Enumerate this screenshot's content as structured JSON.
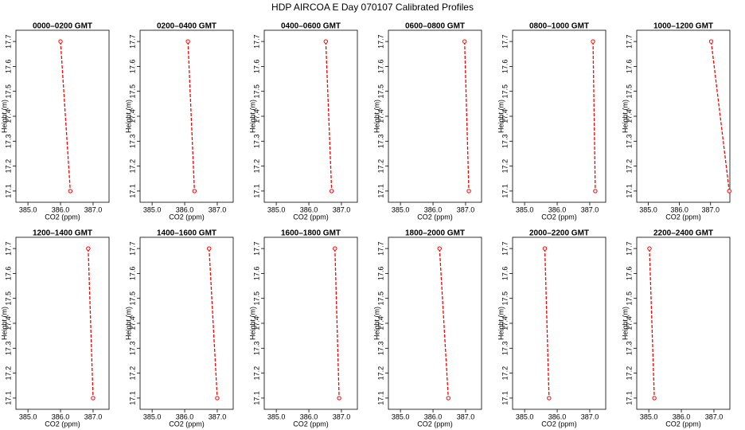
{
  "title": "HDP AIRCOA E  Day 070107  Calibrated Profiles",
  "chart_data": [
    {
      "type": "line",
      "title": "0000–0200 GMT",
      "xlabel": "CO2 (ppm)",
      "ylabel": "Height (m)",
      "color": "#ff0000",
      "x": [
        386.0,
        386.3
      ],
      "values": [
        17.7,
        17.1
      ],
      "xlim": [
        384.63,
        387.49
      ],
      "ylim": [
        17.055,
        17.745
      ],
      "xticks": [
        {
          "value": 385,
          "label": "385.0"
        },
        {
          "value": 386,
          "label": "386.0"
        },
        {
          "value": 387,
          "label": "387.0"
        }
      ],
      "yticks": [
        17.1,
        17.2,
        17.3,
        17.4,
        17.5,
        17.6,
        17.7
      ]
    },
    {
      "type": "line",
      "title": "0200–0400 GMT",
      "xlabel": "CO2 (ppm)",
      "ylabel": "Height (m)",
      "color": "#ff0000",
      "x": [
        386.1,
        386.3
      ],
      "values": [
        17.7,
        17.1
      ],
      "xlim": [
        384.63,
        387.49
      ],
      "ylim": [
        17.055,
        17.745
      ],
      "xticks": [
        {
          "value": 385,
          "label": "385.0"
        },
        {
          "value": 386,
          "label": "386.0"
        },
        {
          "value": 387,
          "label": "387.0"
        }
      ],
      "yticks": [
        17.1,
        17.2,
        17.3,
        17.4,
        17.5,
        17.6,
        17.7
      ]
    },
    {
      "type": "line",
      "title": "0400–0600 GMT",
      "xlabel": "CO2 (ppm)",
      "ylabel": "Height (m)",
      "color": "#ff0000",
      "x": [
        386.52,
        386.7
      ],
      "values": [
        17.7,
        17.1
      ],
      "xlim": [
        384.63,
        387.49
      ],
      "ylim": [
        17.055,
        17.745
      ],
      "xticks": [
        {
          "value": 385,
          "label": "385.0"
        },
        {
          "value": 386,
          "label": "386.0"
        },
        {
          "value": 387,
          "label": "387.0"
        }
      ],
      "yticks": [
        17.1,
        17.2,
        17.3,
        17.4,
        17.5,
        17.6,
        17.7
      ]
    },
    {
      "type": "line",
      "title": "0600–0800 GMT",
      "xlabel": "CO2 (ppm)",
      "ylabel": "Height (m)",
      "color": "#ff0000",
      "x": [
        386.97,
        387.1
      ],
      "values": [
        17.7,
        17.1
      ],
      "xlim": [
        384.63,
        387.49
      ],
      "ylim": [
        17.055,
        17.745
      ],
      "xticks": [
        {
          "value": 385,
          "label": "385.0"
        },
        {
          "value": 386,
          "label": "386.0"
        },
        {
          "value": 387,
          "label": "387.0"
        }
      ],
      "yticks": [
        17.1,
        17.2,
        17.3,
        17.4,
        17.5,
        17.6,
        17.7
      ]
    },
    {
      "type": "line",
      "title": "0800–1000 GMT",
      "xlabel": "CO2 (ppm)",
      "ylabel": "Height (m)",
      "color": "#ff0000",
      "x": [
        387.1,
        387.17
      ],
      "values": [
        17.7,
        17.1
      ],
      "xlim": [
        384.63,
        387.49
      ],
      "ylim": [
        17.055,
        17.745
      ],
      "xticks": [
        {
          "value": 385,
          "label": "385.0"
        },
        {
          "value": 386,
          "label": "386.0"
        },
        {
          "value": 387,
          "label": "387.0"
        }
      ],
      "yticks": [
        17.1,
        17.2,
        17.3,
        17.4,
        17.5,
        17.6,
        17.7
      ]
    },
    {
      "type": "line",
      "title": "1000–1200 GMT",
      "xlabel": "CO2 (ppm)",
      "ylabel": "Height (m)",
      "color": "#ff0000",
      "x": [
        387.02,
        387.6
      ],
      "values": [
        17.7,
        17.1
      ],
      "xlim": [
        384.63,
        387.62
      ],
      "ylim": [
        17.055,
        17.745
      ],
      "xticks": [
        {
          "value": 385,
          "label": "385.0"
        },
        {
          "value": 386,
          "label": "386.0"
        },
        {
          "value": 387,
          "label": "387.0"
        }
      ],
      "yticks": [
        17.1,
        17.2,
        17.3,
        17.4,
        17.5,
        17.6,
        17.7
      ]
    },
    {
      "type": "line",
      "title": "1200–1400 GMT",
      "xlabel": "CO2 (ppm)",
      "ylabel": "Height (m)",
      "color": "#ff0000",
      "x": [
        386.85,
        387.0
      ],
      "values": [
        17.7,
        17.1
      ],
      "xlim": [
        384.63,
        387.49
      ],
      "ylim": [
        17.055,
        17.745
      ],
      "xticks": [
        {
          "value": 385,
          "label": "385.0"
        },
        {
          "value": 386,
          "label": "386.0"
        },
        {
          "value": 387,
          "label": "387.0"
        }
      ],
      "yticks": [
        17.1,
        17.2,
        17.3,
        17.4,
        17.5,
        17.6,
        17.7
      ]
    },
    {
      "type": "line",
      "title": "1400–1600 GMT",
      "xlabel": "CO2 (ppm)",
      "ylabel": "Height (m)",
      "color": "#ff0000",
      "x": [
        386.75,
        387.0
      ],
      "values": [
        17.7,
        17.1
      ],
      "xlim": [
        384.63,
        387.49
      ],
      "ylim": [
        17.055,
        17.745
      ],
      "xticks": [
        {
          "value": 385,
          "label": "385.0"
        },
        {
          "value": 386,
          "label": "386.0"
        },
        {
          "value": 387,
          "label": "387.0"
        }
      ],
      "yticks": [
        17.1,
        17.2,
        17.3,
        17.4,
        17.5,
        17.6,
        17.7
      ]
    },
    {
      "type": "line",
      "title": "1600–1800 GMT",
      "xlabel": "CO2 (ppm)",
      "ylabel": "Height (m)",
      "color": "#ff0000",
      "x": [
        386.8,
        386.93
      ],
      "values": [
        17.7,
        17.1
      ],
      "xlim": [
        384.63,
        387.49
      ],
      "ylim": [
        17.055,
        17.745
      ],
      "xticks": [
        {
          "value": 385,
          "label": "385.0"
        },
        {
          "value": 386,
          "label": "386.0"
        },
        {
          "value": 387,
          "label": "387.0"
        }
      ],
      "yticks": [
        17.1,
        17.2,
        17.3,
        17.4,
        17.5,
        17.6,
        17.7
      ]
    },
    {
      "type": "line",
      "title": "1800–2000 GMT",
      "xlabel": "CO2 (ppm)",
      "ylabel": "Height (m)",
      "color": "#ff0000",
      "x": [
        386.2,
        386.47
      ],
      "values": [
        17.7,
        17.1
      ],
      "xlim": [
        384.63,
        387.49
      ],
      "ylim": [
        17.055,
        17.745
      ],
      "xticks": [
        {
          "value": 385,
          "label": "385.0"
        },
        {
          "value": 386,
          "label": "386.0"
        },
        {
          "value": 387,
          "label": "387.0"
        }
      ],
      "yticks": [
        17.1,
        17.2,
        17.3,
        17.4,
        17.5,
        17.6,
        17.7
      ]
    },
    {
      "type": "line",
      "title": "2000–2200 GMT",
      "xlabel": "CO2 (ppm)",
      "ylabel": "Height (m)",
      "color": "#ff0000",
      "x": [
        385.62,
        385.75
      ],
      "values": [
        17.7,
        17.1
      ],
      "xlim": [
        384.63,
        387.49
      ],
      "ylim": [
        17.055,
        17.745
      ],
      "xticks": [
        {
          "value": 385,
          "label": "385.0"
        },
        {
          "value": 386,
          "label": "386.0"
        },
        {
          "value": 387,
          "label": "387.0"
        }
      ],
      "yticks": [
        17.1,
        17.2,
        17.3,
        17.4,
        17.5,
        17.6,
        17.7
      ]
    },
    {
      "type": "line",
      "title": "2200–2400 GMT",
      "xlabel": "CO2 (ppm)",
      "ylabel": "Height (m)",
      "color": "#ff0000",
      "x": [
        385.02,
        385.17
      ],
      "values": [
        17.7,
        17.1
      ],
      "xlim": [
        384.63,
        387.49
      ],
      "ylim": [
        17.055,
        17.745
      ],
      "xticks": [
        {
          "value": 385,
          "label": "385.0"
        },
        {
          "value": 386,
          "label": "386.0"
        },
        {
          "value": 387,
          "label": "387.0"
        }
      ],
      "yticks": [
        17.1,
        17.2,
        17.3,
        17.4,
        17.5,
        17.6,
        17.7
      ]
    }
  ]
}
